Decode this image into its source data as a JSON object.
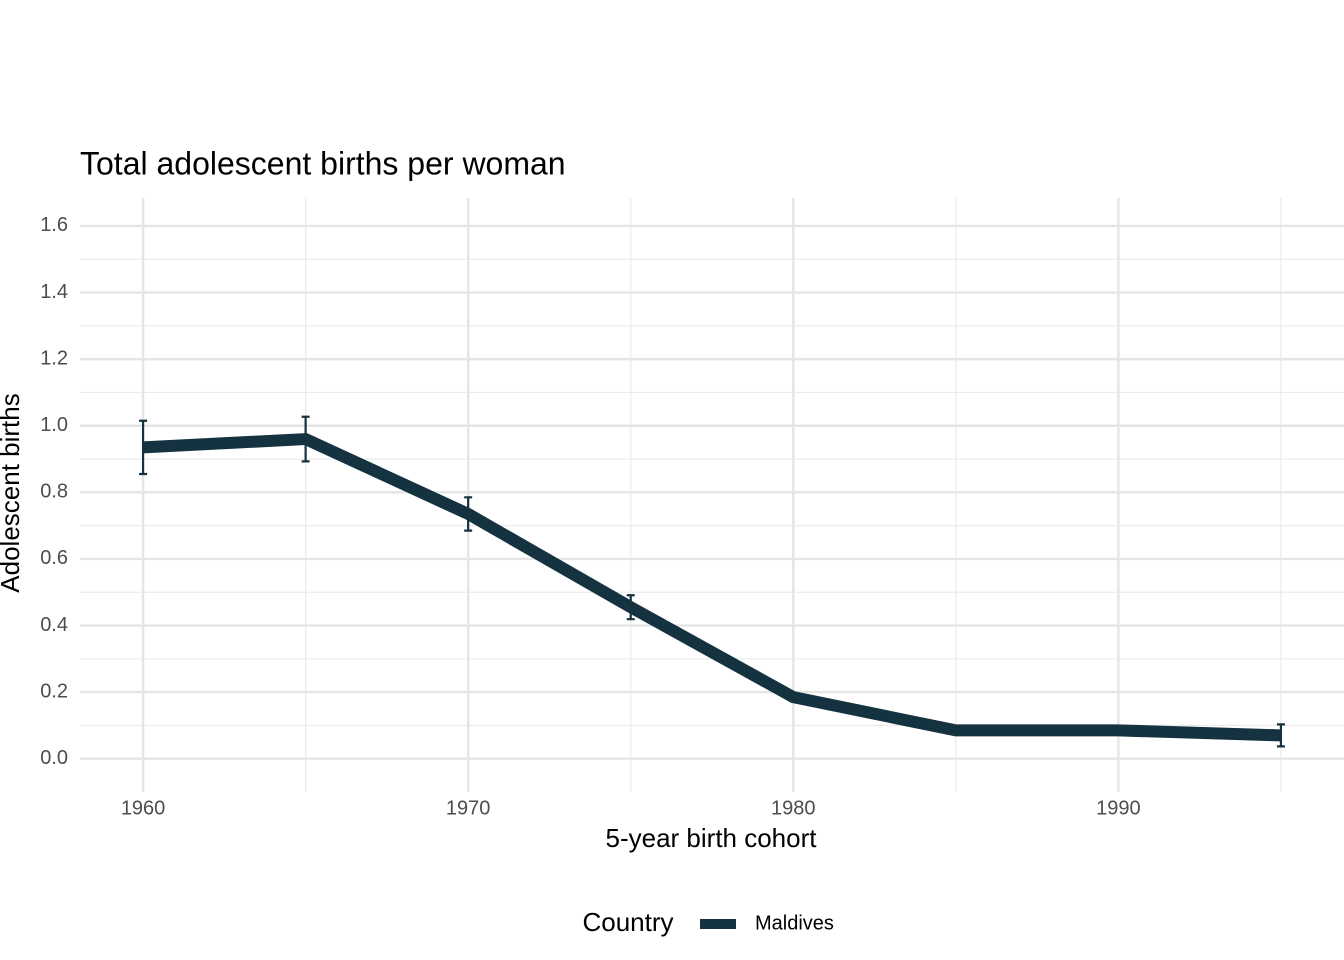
{
  "chart_data": {
    "type": "line",
    "title": "Total adolescent births per woman",
    "x_label": "5-year birth cohort",
    "y_label": "Adolescent births",
    "legend_title": "Country",
    "legend_position": "bottom",
    "x": [
      1960,
      1965,
      1970,
      1975,
      1980,
      1985,
      1990,
      1995
    ],
    "series": [
      {
        "name": "Maldives",
        "color": "#14323f",
        "values": [
          0.935,
          0.96,
          0.735,
          0.455,
          0.185,
          0.085,
          0.085,
          0.07
        ],
        "errors": [
          0.08,
          0.067,
          0.05,
          0.036,
          0.012,
          0.005,
          0.01,
          0.033
        ]
      }
    ],
    "xlim": [
      1958.06,
      1996.94
    ],
    "xticks": [
      1960,
      1970,
      1980,
      1990
    ],
    "ylim": [
      -0.1,
      1.684
    ],
    "yticks": [
      {
        "value": 0,
        "label": "0.0"
      },
      0.2,
      0.4,
      0.6,
      0.8,
      {
        "value": 1,
        "label": "1.0"
      },
      1.2,
      1.4,
      1.6
    ],
    "grid": true
  }
}
